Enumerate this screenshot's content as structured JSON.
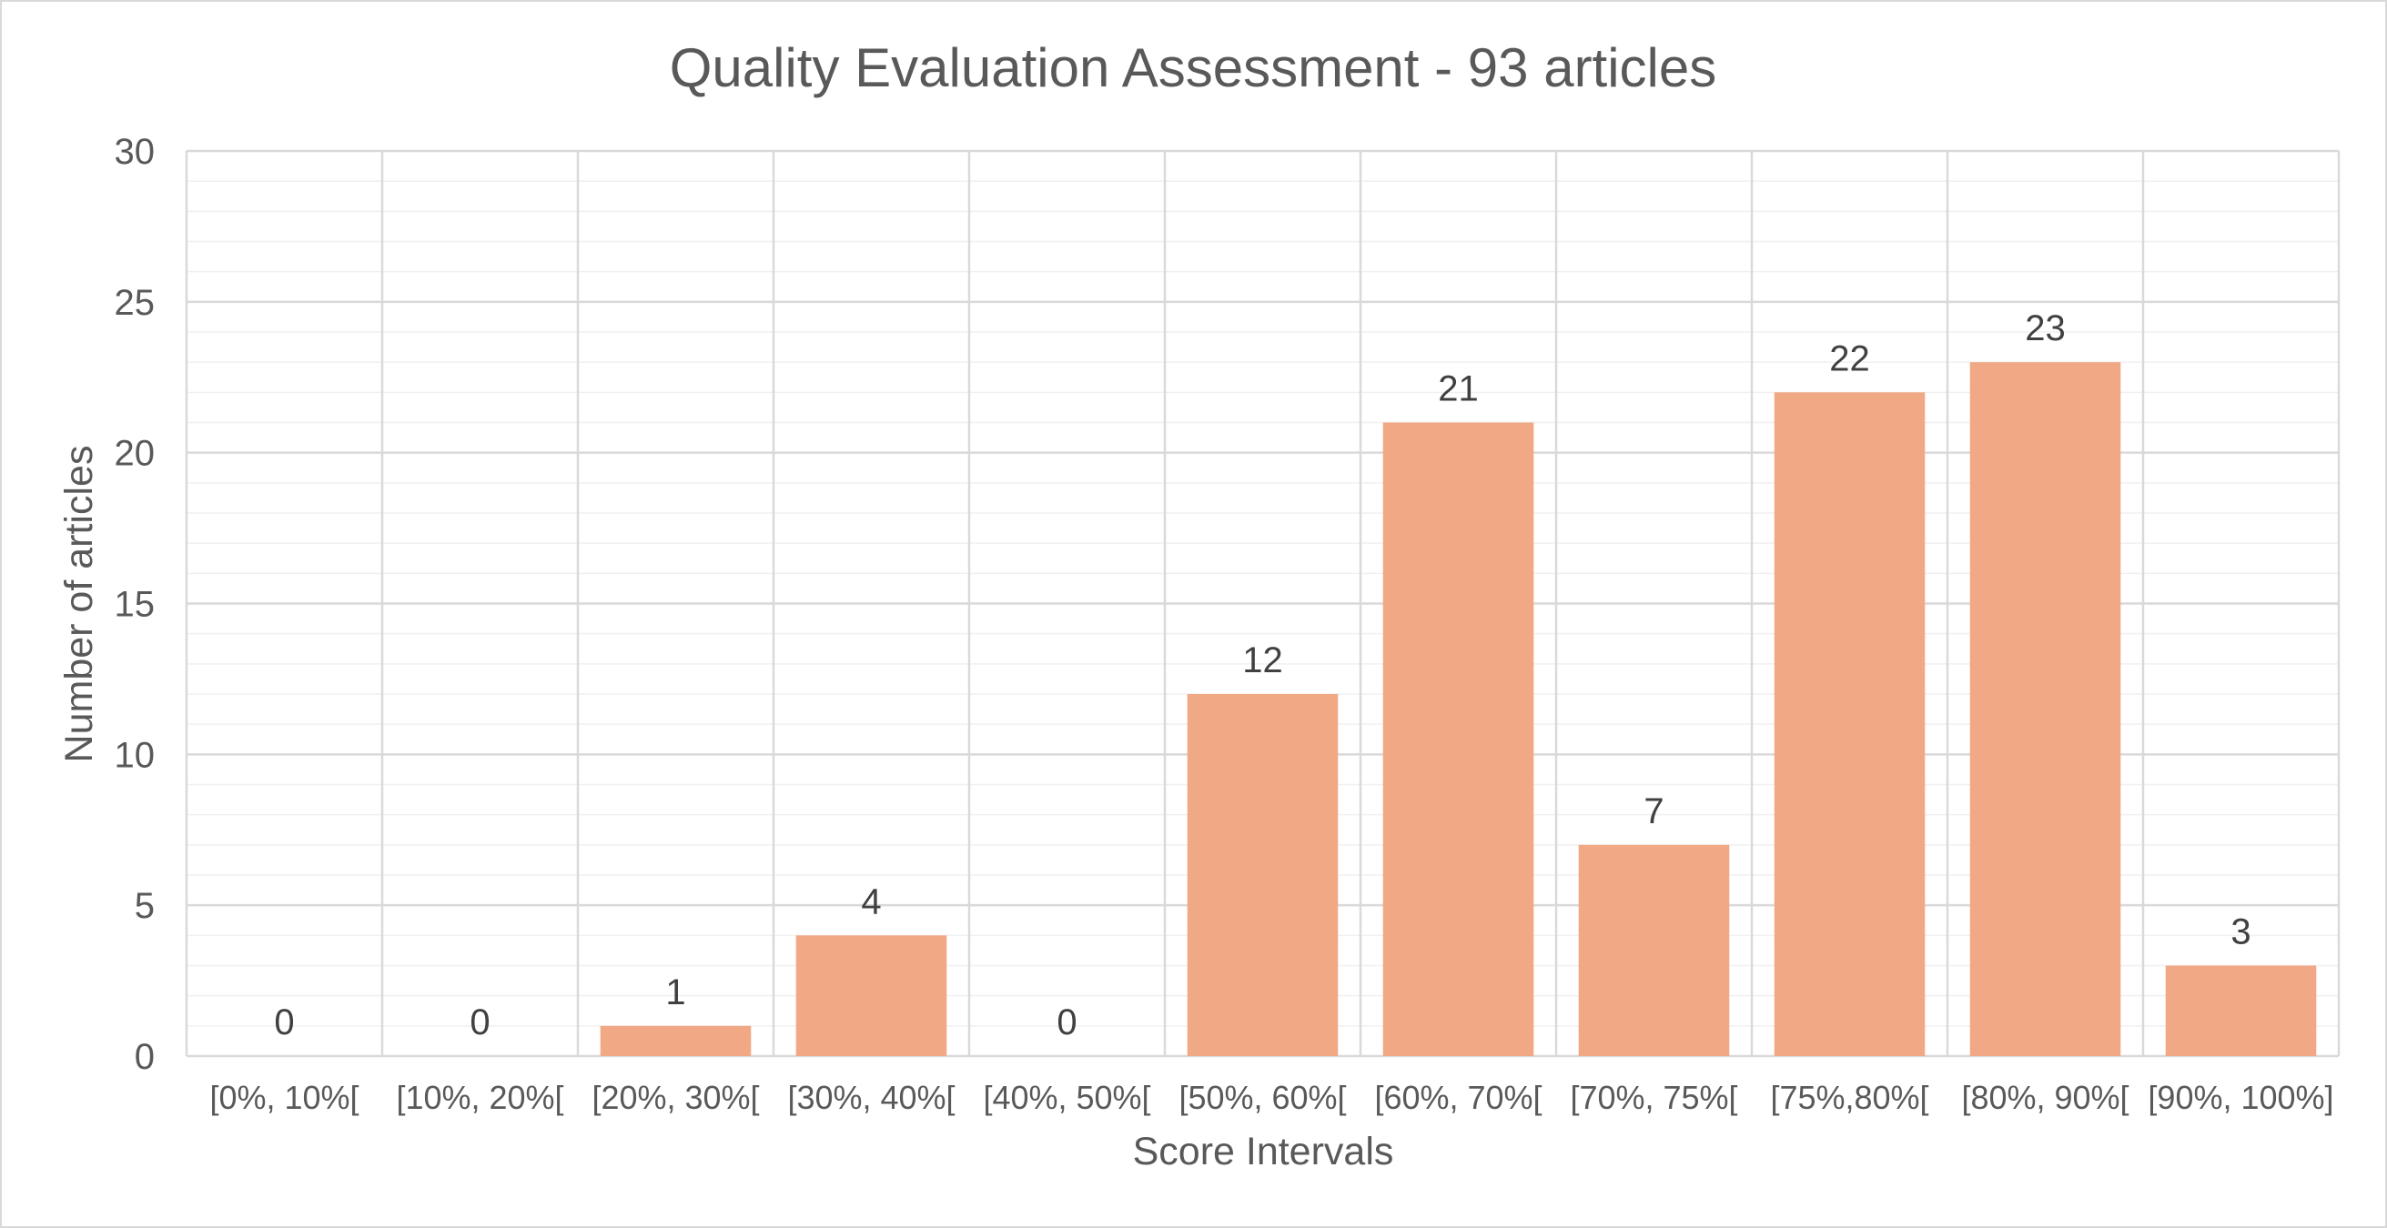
{
  "chart_data": {
    "type": "bar",
    "title": "Quality Evaluation Assessment - 93 articles",
    "xlabel": "Score Intervals",
    "ylabel": "Number of articles",
    "categories": [
      "[0%, 10%[",
      "[10%, 20%[",
      "[20%, 30%[",
      "[30%, 40%[",
      "[40%, 50%[",
      "[50%, 60%[",
      "[60%, 70%[",
      "[70%, 75%[",
      "[75%,80%[",
      "[80%, 90%[",
      "[90%, 100%]"
    ],
    "values": [
      0,
      0,
      1,
      4,
      0,
      12,
      21,
      7,
      22,
      23,
      3
    ],
    "ylim": [
      0,
      30
    ],
    "yticks": [
      0,
      5,
      10,
      15,
      20,
      25,
      30
    ],
    "minor_gridline_step": 1,
    "grid": true,
    "legend": "none",
    "data_labels": true,
    "colors": {
      "bar": "#f0a984",
      "major_grid": "#d9d9d9",
      "minor_grid": "#f0f0f0",
      "text": "#595959",
      "label_text": "#404040"
    }
  }
}
